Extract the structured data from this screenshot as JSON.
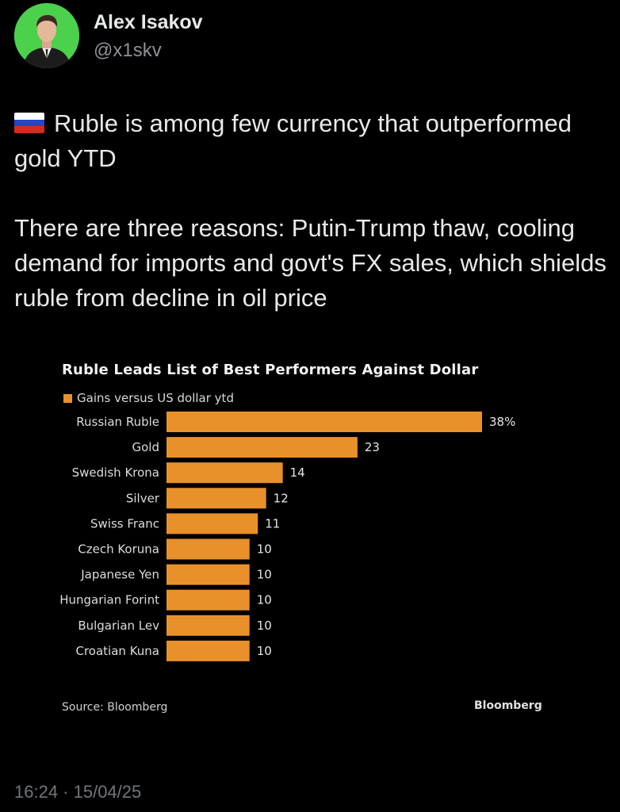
{
  "author": {
    "name": "Alex Isakov",
    "handle": "@x1skv"
  },
  "tweet": {
    "flag_icon": "russia-flag-icon",
    "line1": "Ruble is among few currency that outperformed gold YTD",
    "line2": "There are three reasons: Putin-Trump thaw, cooling demand for imports and govt's FX sales, which shields ruble from decline in oil price"
  },
  "chart_data": {
    "type": "bar",
    "orientation": "horizontal",
    "title": "Ruble Leads List of Best Performers Against Dollar",
    "legend": "Gains versus US dollar ytd",
    "categories": [
      "Russian Ruble",
      "Gold",
      "Swedish Krona",
      "Silver",
      "Swiss Franc",
      "Czech Koruna",
      "Japanese Yen",
      "Hungarian Forint",
      "Bulgarian Lev",
      "Croatian Kuna"
    ],
    "values": [
      38,
      23,
      14,
      12,
      11,
      10,
      10,
      10,
      10,
      10
    ],
    "value_labels": [
      "38%",
      "23",
      "14",
      "12",
      "11",
      "10",
      "10",
      "10",
      "10",
      "10"
    ],
    "bar_color": "#e8912a",
    "source": "Source: Bloomberg",
    "brand": "Bloomberg"
  },
  "timestamp": "16:24 · 15/04/25"
}
